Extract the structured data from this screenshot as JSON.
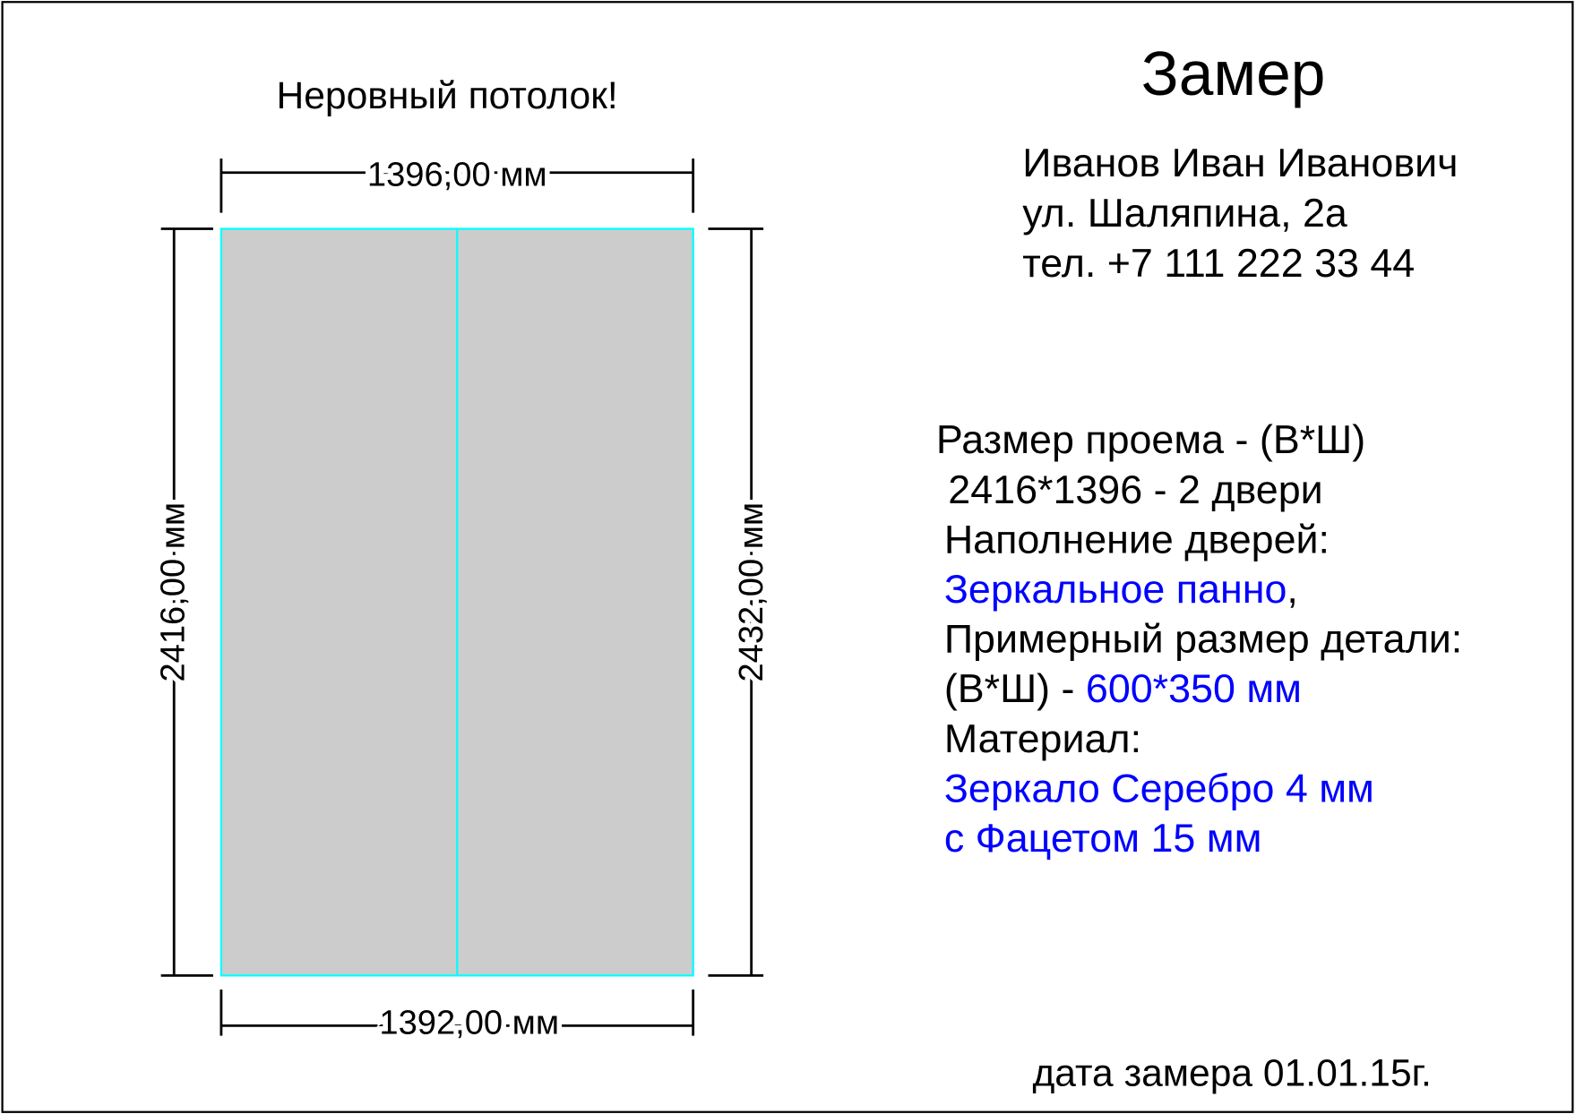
{
  "header": {
    "title": "Замер",
    "note": "Неровный потолок!"
  },
  "client": {
    "name": "Иванов Иван Иванович",
    "address": "ул. Шаляпина, 2а",
    "phone": "тел. +7 111 222 33 44"
  },
  "dimensions": {
    "top": "1396,00 мм",
    "bottom": "1392,00 мм",
    "left": "2416,00 мм",
    "right": "2432,00 мм"
  },
  "specs": [
    [
      {
        "text": "Размер проема - (В*Ш)",
        "color": "black"
      }
    ],
    [
      {
        "text": "2416*1396 - 2 двери",
        "color": "black"
      }
    ],
    [
      {
        "text": "Наполнение дверей:",
        "color": "black"
      }
    ],
    [
      {
        "text": "Зеркальное панно",
        "color": "blue"
      },
      {
        "text": ",",
        "color": "black"
      }
    ],
    [
      {
        "text": "Примерный размер детали:",
        "color": "black"
      }
    ],
    [
      {
        "text": "(В*Ш) - ",
        "color": "black"
      },
      {
        "text": "600*350 мм",
        "color": "blue"
      }
    ],
    [
      {
        "text": "Материал:",
        "color": "black"
      }
    ],
    [
      {
        "text": "Зеркало Серебро 4 мм",
        "color": "blue"
      }
    ],
    [
      {
        "text": "с Фацетом 15 мм",
        "color": "blue"
      }
    ]
  ],
  "footer": {
    "date": "дата замера 01.01.15г."
  }
}
